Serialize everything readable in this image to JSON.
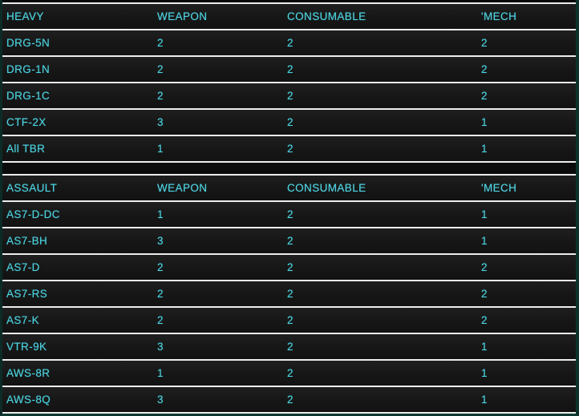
{
  "accent_color": "#4bd5e2",
  "separator_color": "#ededed",
  "frame_color": "#0d322c",
  "tables": [
    {
      "id": "heavy",
      "headers": [
        "HEAVY",
        "WEAPON",
        "CONSUMABLE",
        "'MECH"
      ],
      "rows": [
        {
          "name": "DRG-5N",
          "weapon": "2",
          "consumable": "2",
          "mech": "2"
        },
        {
          "name": "DRG-1N",
          "weapon": "2",
          "consumable": "2",
          "mech": "2"
        },
        {
          "name": "DRG-1C",
          "weapon": "2",
          "consumable": "2",
          "mech": "2"
        },
        {
          "name": "CTF-2X",
          "weapon": "3",
          "consumable": "2",
          "mech": "1"
        },
        {
          "name": "All TBR",
          "weapon": "1",
          "consumable": "2",
          "mech": "1"
        }
      ]
    },
    {
      "id": "assault",
      "headers": [
        "ASSAULT",
        "WEAPON",
        "CONSUMABLE",
        "'MECH"
      ],
      "rows": [
        {
          "name": "AS7-D-DC",
          "weapon": "1",
          "consumable": "2",
          "mech": "1"
        },
        {
          "name": "AS7-BH",
          "weapon": "3",
          "consumable": "2",
          "mech": "1"
        },
        {
          "name": "AS7-D",
          "weapon": "2",
          "consumable": "2",
          "mech": "2"
        },
        {
          "name": "AS7-RS",
          "weapon": "2",
          "consumable": "2",
          "mech": "2"
        },
        {
          "name": "AS7-K",
          "weapon": "2",
          "consumable": "2",
          "mech": "2"
        },
        {
          "name": "VTR-9K",
          "weapon": "3",
          "consumable": "2",
          "mech": "1"
        },
        {
          "name": "AWS-8R",
          "weapon": "1",
          "consumable": "2",
          "mech": "1"
        },
        {
          "name": "AWS-8Q",
          "weapon": "3",
          "consumable": "2",
          "mech": "1"
        }
      ]
    }
  ]
}
